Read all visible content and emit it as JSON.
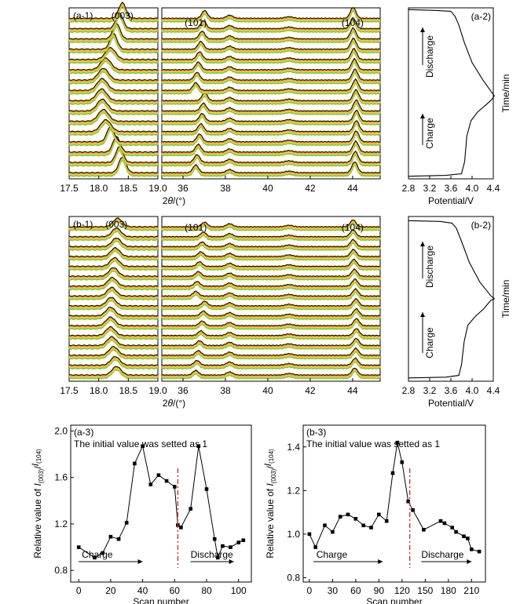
{
  "colors": {
    "ink": "#000000",
    "trace": "#111111",
    "halo_green": "#7ac943",
    "halo_yellow": "#f2d03a",
    "halo_orange": "#f08c1a",
    "marker_line": "#d9302c"
  },
  "chart_data": [
    {
      "id": "a-1",
      "type": "line",
      "label": "(a-1)",
      "xlabel_parts": [
        "2",
        "θ",
        "/(°)"
      ],
      "left_panel": {
        "xlim": [
          17.5,
          19.0
        ],
        "ticks": [
          "17.5",
          "18.0",
          "18.5",
          "19.0"
        ],
        "peak_label": "(003)",
        "peak_label_x": 18.4
      },
      "right_panel": {
        "xlim": [
          35.0,
          45.3
        ],
        "ticks": [
          "36",
          "38",
          "40",
          "42",
          "44"
        ],
        "peaks": [
          {
            "label": "(101)",
            "x": 36.6
          },
          {
            "label": "(104)",
            "x": 44.0
          }
        ]
      },
      "traces": 16,
      "peak_003_positions": [
        18.4,
        18.35,
        18.3,
        18.2,
        18.12,
        18.08,
        18.06,
        18.05,
        18.06,
        18.08,
        18.12,
        18.2,
        18.25,
        18.3,
        18.35,
        18.4
      ]
    },
    {
      "id": "a-2",
      "type": "line",
      "label": "(a-2)",
      "xlabel": "Potential/V",
      "ylabel": "Time/min",
      "xlim": [
        2.8,
        4.4
      ],
      "ticks": [
        "2.8",
        "3.2",
        "3.6",
        "4.0",
        "4.4"
      ],
      "annotations": [
        "Charge",
        "Discharge"
      ]
    },
    {
      "id": "b-1",
      "type": "line",
      "label": "(b-1)",
      "xlabel_parts": [
        "2",
        "θ",
        "/(°)"
      ],
      "left_panel": {
        "xlim": [
          17.5,
          19.0
        ],
        "ticks": [
          "17.5",
          "18.0",
          "18.5",
          "19.0"
        ],
        "peak_label": "(003)",
        "peak_label_x": 18.3
      },
      "right_panel": {
        "xlim": [
          35.0,
          45.3
        ],
        "ticks": [
          "36",
          "38",
          "40",
          "42",
          "44"
        ],
        "peaks": [
          {
            "label": "(101)",
            "x": 36.6
          },
          {
            "label": "(104)",
            "x": 44.0
          }
        ]
      },
      "traces": 16,
      "peak_003_positions": [
        18.3,
        18.28,
        18.25,
        18.22,
        18.2,
        18.2,
        18.2,
        18.21,
        18.22,
        18.23,
        18.25,
        18.27,
        18.28,
        18.3,
        18.3,
        18.32
      ]
    },
    {
      "id": "b-2",
      "type": "line",
      "label": "(b-2)",
      "xlabel": "Potential/V",
      "ylabel": "Time/min",
      "xlim": [
        2.8,
        4.4
      ],
      "ticks": [
        "2.8",
        "3.2",
        "3.6",
        "4.0",
        "4.4"
      ],
      "annotations": [
        "Charge",
        "Discharge"
      ]
    },
    {
      "id": "a-3",
      "type": "line",
      "label": "(a-3)",
      "note": "The initial value was setted as 1",
      "xlabel": "Scan number",
      "ylabel_parts": [
        "Relative value of ",
        "I",
        "(003)",
        "/",
        "I",
        "(104)"
      ],
      "xlim": [
        -5,
        108
      ],
      "ylim": [
        0.7,
        2.05
      ],
      "xticks": [
        0,
        20,
        40,
        60,
        80,
        100
      ],
      "yticks": [
        0.8,
        1.2,
        1.6,
        2.0
      ],
      "xtick_labels": [
        "0",
        "20",
        "40",
        "60",
        "80",
        "100"
      ],
      "ytick_labels": [
        "0.8",
        "1.2",
        "1.6",
        "2.0"
      ],
      "x": [
        0,
        10,
        15,
        20,
        25,
        30,
        35,
        40,
        45,
        50,
        55,
        60,
        62,
        64,
        70,
        75,
        80,
        85,
        87,
        90,
        95,
        100,
        103
      ],
      "y": [
        1.0,
        0.91,
        0.95,
        1.09,
        1.07,
        1.21,
        1.72,
        1.87,
        1.54,
        1.62,
        1.57,
        1.52,
        1.19,
        1.17,
        1.33,
        1.87,
        1.5,
        1.07,
        0.91,
        1.01,
        1.0,
        1.04,
        1.06
      ],
      "divider_x": 62,
      "phases": [
        {
          "label": "Charge",
          "from": 0,
          "to": 40
        },
        {
          "label": "Discharge",
          "from": 70,
          "to": 97
        }
      ]
    },
    {
      "id": "b-3",
      "type": "line",
      "label": "(b-3)",
      "note": "The initial value was setted as 1",
      "xlabel": "Scan number",
      "ylabel_parts": [
        "Relative value of ",
        "I",
        "(003)",
        "/",
        "I",
        "(104)"
      ],
      "xlim": [
        -8,
        228
      ],
      "ylim": [
        0.78,
        1.5
      ],
      "xticks": [
        0,
        30,
        60,
        90,
        120,
        150,
        180,
        210
      ],
      "yticks": [
        0.8,
        1.0,
        1.2,
        1.4
      ],
      "xtick_labels": [
        "0",
        "30",
        "60",
        "90",
        "120",
        "150",
        "180",
        "210"
      ],
      "ytick_labels": [
        "0.8",
        "1.0",
        "1.2",
        "1.4"
      ],
      "x": [
        0,
        8,
        20,
        30,
        40,
        50,
        60,
        70,
        80,
        90,
        100,
        108,
        114,
        120,
        128,
        134,
        148,
        170,
        175,
        185,
        190,
        200,
        205,
        210,
        220
      ],
      "y": [
        1.0,
        0.94,
        1.04,
        1.01,
        1.08,
        1.09,
        1.07,
        1.04,
        1.03,
        1.09,
        1.06,
        1.28,
        1.42,
        1.33,
        1.15,
        1.11,
        1.02,
        1.06,
        1.05,
        1.03,
        1.01,
        0.99,
        0.98,
        0.93,
        0.92
      ],
      "divider_x": 130,
      "phases": [
        {
          "label": "Charge",
          "from": 5,
          "to": 95
        },
        {
          "label": "Discharge",
          "from": 145,
          "to": 210
        }
      ]
    }
  ]
}
